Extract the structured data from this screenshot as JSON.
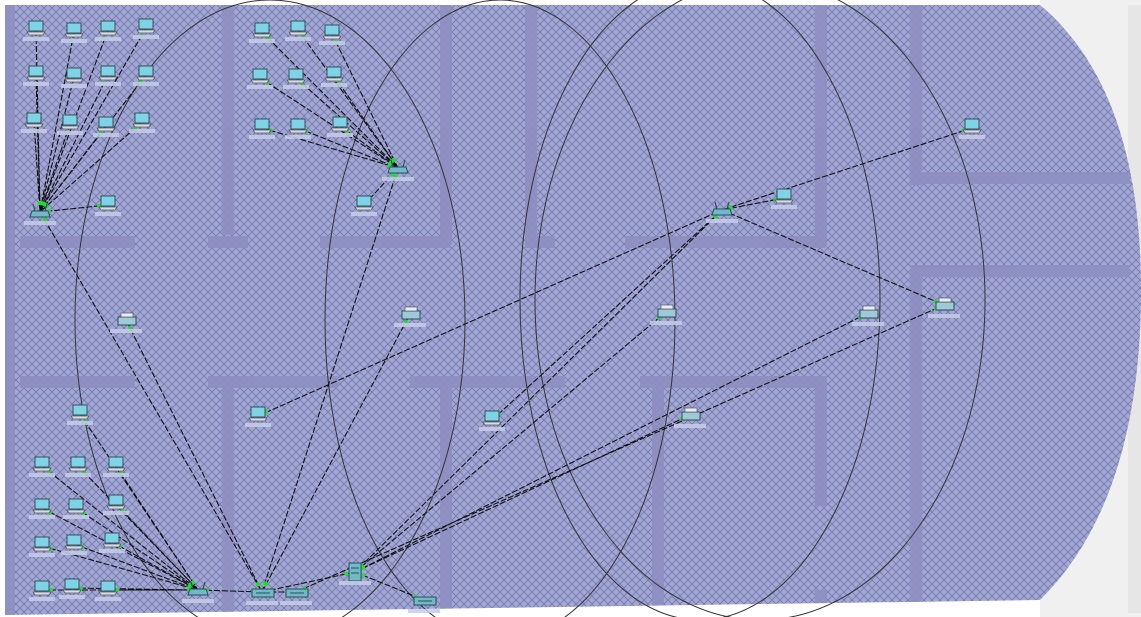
{
  "workspace": {
    "view": "physical-workspace",
    "background_color": "#9ea4cf",
    "wall_color": "#8e8fc1",
    "link_color": "#111111",
    "link_style": "dashed",
    "coverage_ring_color": "#333333",
    "device_screen_color": "#7fd3e6",
    "port_led_color": "#22dd33"
  },
  "nodes": [
    {
      "id": "ap1",
      "kind": "access-point",
      "icon": "wireless-router-icon"
    },
    {
      "id": "ap2",
      "kind": "access-point",
      "icon": "wireless-router-icon"
    },
    {
      "id": "ap3",
      "kind": "access-point",
      "icon": "wireless-router-icon"
    },
    {
      "id": "ap4",
      "kind": "access-point",
      "icon": "wireless-router-icon"
    },
    {
      "id": "sw1",
      "kind": "switch",
      "icon": "switch-icon"
    },
    {
      "id": "sw2",
      "kind": "switch",
      "icon": "switch-icon"
    },
    {
      "id": "srv",
      "kind": "server",
      "icon": "server-icon"
    },
    {
      "id": "pt1",
      "kind": "printer",
      "icon": "printer-icon"
    },
    {
      "id": "pt2",
      "kind": "printer",
      "icon": "printer-icon"
    },
    {
      "id": "pt3",
      "kind": "printer",
      "icon": "printer-icon"
    },
    {
      "id": "pt4",
      "kind": "printer",
      "icon": "printer-icon"
    },
    {
      "id": "pt5",
      "kind": "printer",
      "icon": "printer-icon"
    },
    {
      "id": "pt6",
      "kind": "printer",
      "icon": "printer-icon"
    },
    {
      "id": "ah",
      "kind": "switch",
      "icon": "switch-icon"
    }
  ],
  "laptop_groups": [
    {
      "group": "top-left",
      "count": 15,
      "uplink": "ap1"
    },
    {
      "group": "top-middle",
      "count": 11,
      "uplink": "ap2"
    },
    {
      "group": "bottom-left",
      "count": 13,
      "uplink": "ap3"
    },
    {
      "group": "right",
      "count": 4,
      "uplink": "ap4"
    }
  ],
  "links": [
    [
      "ap1",
      "sw1"
    ],
    [
      "ap2",
      "sw1"
    ],
    [
      "ap3",
      "sw1"
    ],
    [
      "ap4",
      "srv"
    ],
    [
      "sw1",
      "srv"
    ],
    [
      "sw1",
      "sw2"
    ],
    [
      "sw1",
      "pt1"
    ],
    [
      "sw1",
      "pt2"
    ],
    [
      "srv",
      "pt3"
    ],
    [
      "srv",
      "pt4"
    ],
    [
      "srv",
      "pt5"
    ],
    [
      "srv",
      "ah"
    ],
    [
      "ap4",
      "pt6"
    ],
    [
      "sw2",
      "pt6"
    ]
  ]
}
